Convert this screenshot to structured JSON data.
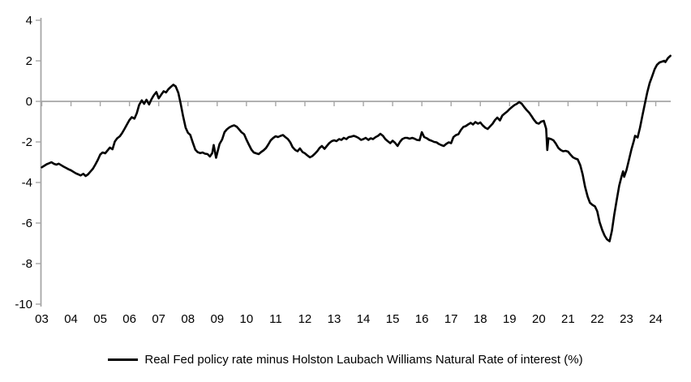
{
  "legend": {
    "label": "Real Fed policy rate minus Holston Laubach Williams Natural Rate of interest (%)"
  },
  "chart_data": {
    "type": "line",
    "title": "",
    "xlabel": "",
    "ylabel": "",
    "grid": false,
    "legend_position": "bottom",
    "axis_color": "#A6A6A6",
    "line_color": "#000000",
    "ylim": [
      -10,
      4
    ],
    "y_ticks": [
      4,
      2,
      0,
      -2,
      -4,
      -6,
      -8,
      -10
    ],
    "x_tick_labels": [
      "03",
      "04",
      "05",
      "06",
      "07",
      "08",
      "09",
      "10",
      "11",
      "12",
      "13",
      "14",
      "15",
      "16",
      "17",
      "18",
      "19",
      "20",
      "21",
      "22",
      "23",
      "24"
    ],
    "x_range": [
      2003.0,
      2024.5
    ],
    "x_axis_crosses_at": 0,
    "series": [
      {
        "name": "Real Fed policy rate minus Holston Laubach Williams Natural Rate of interest (%)",
        "color": "#000000",
        "points": [
          [
            2003.0,
            -3.25
          ],
          [
            2003.08,
            -3.18
          ],
          [
            2003.17,
            -3.1
          ],
          [
            2003.25,
            -3.05
          ],
          [
            2003.33,
            -3.0
          ],
          [
            2003.42,
            -3.08
          ],
          [
            2003.5,
            -3.12
          ],
          [
            2003.58,
            -3.07
          ],
          [
            2003.67,
            -3.15
          ],
          [
            2003.75,
            -3.22
          ],
          [
            2003.83,
            -3.28
          ],
          [
            2003.92,
            -3.35
          ],
          [
            2004.0,
            -3.4
          ],
          [
            2004.08,
            -3.47
          ],
          [
            2004.17,
            -3.55
          ],
          [
            2004.25,
            -3.6
          ],
          [
            2004.33,
            -3.65
          ],
          [
            2004.42,
            -3.57
          ],
          [
            2004.5,
            -3.68
          ],
          [
            2004.58,
            -3.6
          ],
          [
            2004.67,
            -3.45
          ],
          [
            2004.75,
            -3.32
          ],
          [
            2004.83,
            -3.12
          ],
          [
            2004.92,
            -2.88
          ],
          [
            2005.0,
            -2.62
          ],
          [
            2005.08,
            -2.52
          ],
          [
            2005.17,
            -2.56
          ],
          [
            2005.25,
            -2.42
          ],
          [
            2005.33,
            -2.28
          ],
          [
            2005.42,
            -2.36
          ],
          [
            2005.5,
            -1.98
          ],
          [
            2005.58,
            -1.82
          ],
          [
            2005.67,
            -1.72
          ],
          [
            2005.75,
            -1.56
          ],
          [
            2005.83,
            -1.36
          ],
          [
            2005.92,
            -1.12
          ],
          [
            2006.0,
            -0.92
          ],
          [
            2006.08,
            -0.78
          ],
          [
            2006.17,
            -0.85
          ],
          [
            2006.25,
            -0.58
          ],
          [
            2006.33,
            -0.18
          ],
          [
            2006.42,
            0.05
          ],
          [
            2006.5,
            -0.12
          ],
          [
            2006.58,
            0.08
          ],
          [
            2006.67,
            -0.15
          ],
          [
            2006.75,
            0.1
          ],
          [
            2006.83,
            0.3
          ],
          [
            2006.92,
            0.46
          ],
          [
            2007.0,
            0.15
          ],
          [
            2007.08,
            0.32
          ],
          [
            2007.17,
            0.5
          ],
          [
            2007.25,
            0.44
          ],
          [
            2007.33,
            0.6
          ],
          [
            2007.42,
            0.72
          ],
          [
            2007.5,
            0.82
          ],
          [
            2007.58,
            0.74
          ],
          [
            2007.67,
            0.42
          ],
          [
            2007.75,
            -0.1
          ],
          [
            2007.83,
            -0.7
          ],
          [
            2007.92,
            -1.3
          ],
          [
            2008.0,
            -1.55
          ],
          [
            2008.08,
            -1.65
          ],
          [
            2008.17,
            -2.05
          ],
          [
            2008.25,
            -2.38
          ],
          [
            2008.33,
            -2.5
          ],
          [
            2008.42,
            -2.55
          ],
          [
            2008.5,
            -2.52
          ],
          [
            2008.58,
            -2.58
          ],
          [
            2008.67,
            -2.6
          ],
          [
            2008.75,
            -2.72
          ],
          [
            2008.83,
            -2.55
          ],
          [
            2008.88,
            -2.15
          ],
          [
            2008.96,
            -2.78
          ],
          [
            2009.08,
            -2.1
          ],
          [
            2009.17,
            -1.88
          ],
          [
            2009.25,
            -1.52
          ],
          [
            2009.33,
            -1.38
          ],
          [
            2009.42,
            -1.28
          ],
          [
            2009.5,
            -1.22
          ],
          [
            2009.58,
            -1.18
          ],
          [
            2009.67,
            -1.25
          ],
          [
            2009.75,
            -1.38
          ],
          [
            2009.83,
            -1.52
          ],
          [
            2009.92,
            -1.62
          ],
          [
            2010.0,
            -1.88
          ],
          [
            2010.08,
            -2.12
          ],
          [
            2010.17,
            -2.38
          ],
          [
            2010.25,
            -2.52
          ],
          [
            2010.33,
            -2.56
          ],
          [
            2010.42,
            -2.6
          ],
          [
            2010.5,
            -2.5
          ],
          [
            2010.58,
            -2.42
          ],
          [
            2010.67,
            -2.3
          ],
          [
            2010.75,
            -2.12
          ],
          [
            2010.83,
            -1.92
          ],
          [
            2010.92,
            -1.8
          ],
          [
            2011.0,
            -1.72
          ],
          [
            2011.08,
            -1.76
          ],
          [
            2011.17,
            -1.7
          ],
          [
            2011.25,
            -1.66
          ],
          [
            2011.33,
            -1.76
          ],
          [
            2011.42,
            -1.86
          ],
          [
            2011.5,
            -2.02
          ],
          [
            2011.58,
            -2.26
          ],
          [
            2011.67,
            -2.4
          ],
          [
            2011.75,
            -2.46
          ],
          [
            2011.83,
            -2.32
          ],
          [
            2011.92,
            -2.5
          ],
          [
            2012.0,
            -2.56
          ],
          [
            2012.08,
            -2.66
          ],
          [
            2012.17,
            -2.76
          ],
          [
            2012.25,
            -2.7
          ],
          [
            2012.33,
            -2.6
          ],
          [
            2012.42,
            -2.46
          ],
          [
            2012.5,
            -2.3
          ],
          [
            2012.58,
            -2.2
          ],
          [
            2012.67,
            -2.34
          ],
          [
            2012.75,
            -2.2
          ],
          [
            2012.83,
            -2.06
          ],
          [
            2012.92,
            -1.96
          ],
          [
            2013.0,
            -1.92
          ],
          [
            2013.08,
            -1.96
          ],
          [
            2013.17,
            -1.86
          ],
          [
            2013.25,
            -1.9
          ],
          [
            2013.33,
            -1.8
          ],
          [
            2013.42,
            -1.86
          ],
          [
            2013.5,
            -1.76
          ],
          [
            2013.58,
            -1.74
          ],
          [
            2013.67,
            -1.7
          ],
          [
            2013.75,
            -1.74
          ],
          [
            2013.83,
            -1.8
          ],
          [
            2013.92,
            -1.9
          ],
          [
            2014.0,
            -1.86
          ],
          [
            2014.08,
            -1.8
          ],
          [
            2014.17,
            -1.9
          ],
          [
            2014.25,
            -1.82
          ],
          [
            2014.33,
            -1.86
          ],
          [
            2014.42,
            -1.76
          ],
          [
            2014.5,
            -1.7
          ],
          [
            2014.58,
            -1.6
          ],
          [
            2014.67,
            -1.7
          ],
          [
            2014.75,
            -1.86
          ],
          [
            2014.83,
            -1.96
          ],
          [
            2014.92,
            -2.06
          ],
          [
            2015.0,
            -1.94
          ],
          [
            2015.08,
            -2.04
          ],
          [
            2015.17,
            -2.2
          ],
          [
            2015.25,
            -2.0
          ],
          [
            2015.33,
            -1.86
          ],
          [
            2015.42,
            -1.8
          ],
          [
            2015.5,
            -1.8
          ],
          [
            2015.58,
            -1.84
          ],
          [
            2015.67,
            -1.8
          ],
          [
            2015.75,
            -1.84
          ],
          [
            2015.83,
            -1.9
          ],
          [
            2015.92,
            -1.92
          ],
          [
            2016.0,
            -1.52
          ],
          [
            2016.08,
            -1.76
          ],
          [
            2016.17,
            -1.82
          ],
          [
            2016.25,
            -1.9
          ],
          [
            2016.33,
            -1.94
          ],
          [
            2016.42,
            -2.0
          ],
          [
            2016.5,
            -2.02
          ],
          [
            2016.58,
            -2.1
          ],
          [
            2016.67,
            -2.16
          ],
          [
            2016.75,
            -2.2
          ],
          [
            2016.83,
            -2.1
          ],
          [
            2016.92,
            -2.02
          ],
          [
            2017.0,
            -2.06
          ],
          [
            2017.08,
            -1.76
          ],
          [
            2017.17,
            -1.66
          ],
          [
            2017.25,
            -1.62
          ],
          [
            2017.33,
            -1.42
          ],
          [
            2017.42,
            -1.26
          ],
          [
            2017.5,
            -1.22
          ],
          [
            2017.58,
            -1.14
          ],
          [
            2017.67,
            -1.06
          ],
          [
            2017.75,
            -1.14
          ],
          [
            2017.83,
            -1.02
          ],
          [
            2017.92,
            -1.1
          ],
          [
            2018.0,
            -1.04
          ],
          [
            2018.08,
            -1.18
          ],
          [
            2018.17,
            -1.3
          ],
          [
            2018.25,
            -1.36
          ],
          [
            2018.33,
            -1.24
          ],
          [
            2018.42,
            -1.1
          ],
          [
            2018.5,
            -0.92
          ],
          [
            2018.58,
            -0.8
          ],
          [
            2018.67,
            -0.94
          ],
          [
            2018.75,
            -0.7
          ],
          [
            2018.83,
            -0.6
          ],
          [
            2018.92,
            -0.5
          ],
          [
            2019.0,
            -0.38
          ],
          [
            2019.08,
            -0.28
          ],
          [
            2019.17,
            -0.18
          ],
          [
            2019.25,
            -0.12
          ],
          [
            2019.33,
            -0.03
          ],
          [
            2019.42,
            -0.12
          ],
          [
            2019.5,
            -0.28
          ],
          [
            2019.58,
            -0.42
          ],
          [
            2019.67,
            -0.56
          ],
          [
            2019.75,
            -0.72
          ],
          [
            2019.83,
            -0.9
          ],
          [
            2019.92,
            -1.06
          ],
          [
            2020.0,
            -1.1
          ],
          [
            2020.08,
            -1.0
          ],
          [
            2020.17,
            -0.96
          ],
          [
            2020.25,
            -1.35
          ],
          [
            2020.29,
            -2.4
          ],
          [
            2020.33,
            -1.82
          ],
          [
            2020.42,
            -1.86
          ],
          [
            2020.5,
            -1.92
          ],
          [
            2020.58,
            -2.08
          ],
          [
            2020.67,
            -2.3
          ],
          [
            2020.75,
            -2.4
          ],
          [
            2020.83,
            -2.46
          ],
          [
            2020.92,
            -2.44
          ],
          [
            2021.0,
            -2.48
          ],
          [
            2021.08,
            -2.62
          ],
          [
            2021.17,
            -2.76
          ],
          [
            2021.25,
            -2.82
          ],
          [
            2021.33,
            -2.86
          ],
          [
            2021.42,
            -3.15
          ],
          [
            2021.5,
            -3.6
          ],
          [
            2021.58,
            -4.2
          ],
          [
            2021.67,
            -4.7
          ],
          [
            2021.75,
            -5.0
          ],
          [
            2021.83,
            -5.1
          ],
          [
            2021.92,
            -5.18
          ],
          [
            2022.0,
            -5.42
          ],
          [
            2022.08,
            -5.95
          ],
          [
            2022.17,
            -6.35
          ],
          [
            2022.25,
            -6.62
          ],
          [
            2022.33,
            -6.8
          ],
          [
            2022.42,
            -6.9
          ],
          [
            2022.5,
            -6.38
          ],
          [
            2022.58,
            -5.58
          ],
          [
            2022.67,
            -4.82
          ],
          [
            2022.75,
            -4.15
          ],
          [
            2022.83,
            -3.7
          ],
          [
            2022.88,
            -3.45
          ],
          [
            2022.92,
            -3.72
          ],
          [
            2023.0,
            -3.38
          ],
          [
            2023.08,
            -2.9
          ],
          [
            2023.17,
            -2.36
          ],
          [
            2023.25,
            -1.95
          ],
          [
            2023.29,
            -1.7
          ],
          [
            2023.38,
            -1.78
          ],
          [
            2023.46,
            -1.3
          ],
          [
            2023.54,
            -0.72
          ],
          [
            2023.63,
            -0.1
          ],
          [
            2023.71,
            0.45
          ],
          [
            2023.79,
            0.9
          ],
          [
            2023.88,
            1.25
          ],
          [
            2023.96,
            1.58
          ],
          [
            2024.04,
            1.8
          ],
          [
            2024.13,
            1.92
          ],
          [
            2024.21,
            1.96
          ],
          [
            2024.29,
            2.0
          ],
          [
            2024.33,
            1.94
          ],
          [
            2024.42,
            2.14
          ],
          [
            2024.5,
            2.25
          ]
        ]
      }
    ]
  }
}
